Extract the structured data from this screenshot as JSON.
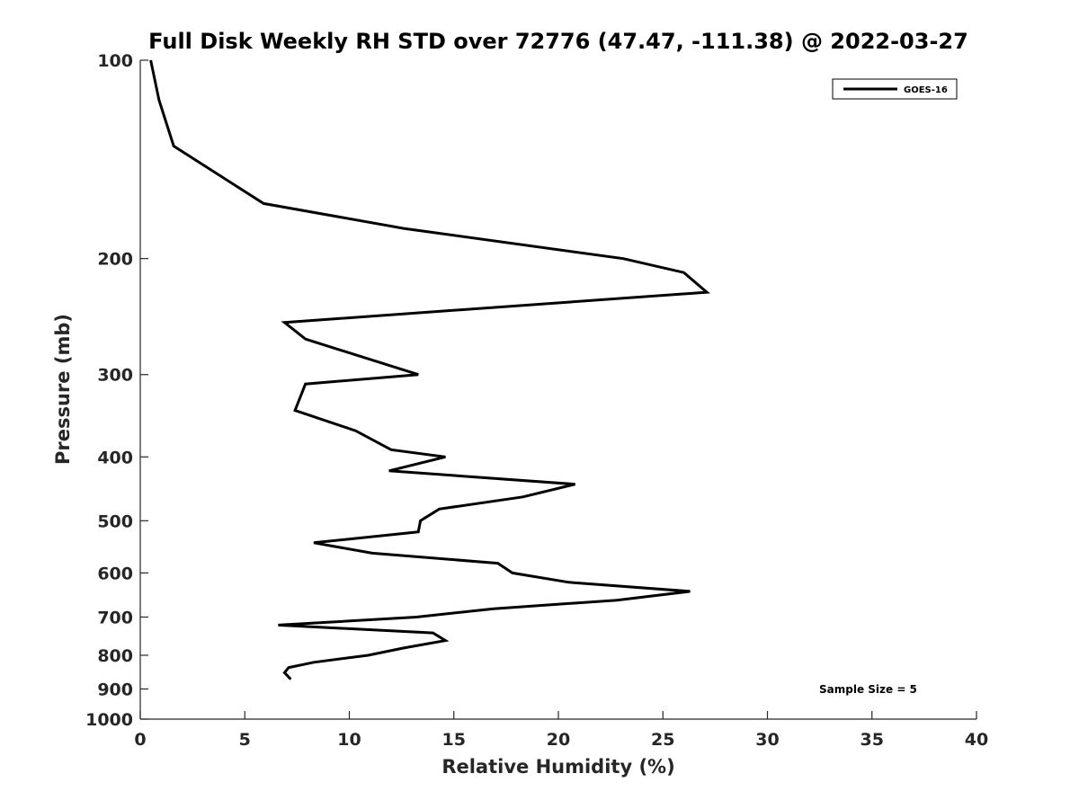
{
  "chart_data": {
    "type": "line",
    "title": "Full Disk Weekly RH STD over 72776 (47.47, -111.38) @ 2022-03-27",
    "xlabel": "Relative Humidity (%)",
    "ylabel": "Pressure (mb)",
    "xlim": [
      0,
      40
    ],
    "ylim": [
      100,
      1000
    ],
    "yscale": "log",
    "y_reversed": true,
    "xticks": [
      0,
      5,
      10,
      15,
      20,
      25,
      30,
      35,
      40
    ],
    "yticks": [
      100,
      200,
      300,
      400,
      500,
      600,
      700,
      800,
      900,
      1000
    ],
    "legend": {
      "entries": [
        "GOES-16"
      ],
      "placement": "top-right"
    },
    "annotation": "Sample Size = 5",
    "series": [
      {
        "name": "GOES-16",
        "color": "#000000",
        "x": [
          0.5,
          0.9,
          1.6,
          5.9,
          12.6,
          23.1,
          26.0,
          27.1,
          6.9,
          7.9,
          13.3,
          7.9,
          7.4,
          10.3,
          12.0,
          14.6,
          11.9,
          20.8,
          18.3,
          14.3,
          13.4,
          13.3,
          8.3,
          11.1,
          17.1,
          17.8,
          20.5,
          26.3,
          22.8,
          16.9,
          13.2,
          6.6,
          14.0,
          14.6,
          12.6,
          10.9,
          8.3,
          7.1,
          6.9,
          7.2
        ],
        "y": [
          100,
          115,
          135,
          165,
          180,
          200,
          210,
          225,
          250,
          265,
          300,
          310,
          340,
          365,
          390,
          400,
          420,
          440,
          460,
          480,
          500,
          520,
          540,
          560,
          580,
          600,
          620,
          640,
          660,
          680,
          700,
          720,
          740,
          760,
          780,
          800,
          820,
          835,
          850,
          870
        ]
      }
    ]
  }
}
